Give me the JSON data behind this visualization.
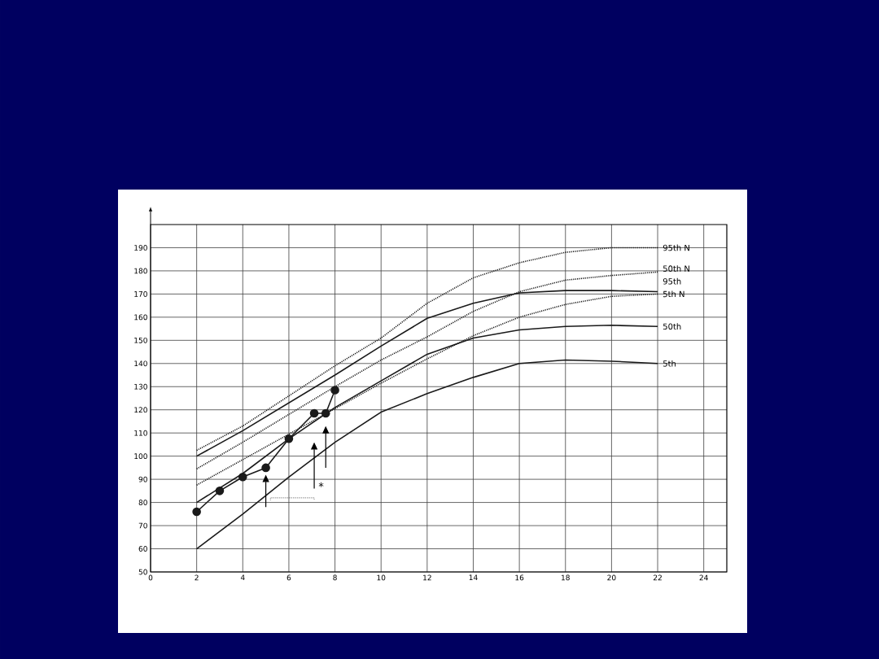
{
  "chart_data": {
    "type": "line",
    "x": [
      2,
      4,
      6,
      8,
      10,
      12,
      14,
      16,
      18,
      20,
      22
    ],
    "series": [
      {
        "name": "95th N",
        "color": "#1a1a1a",
        "line_style": "dotted",
        "values": [
          102.5,
          113,
          126,
          139,
          151,
          166,
          177,
          183.5,
          188,
          190,
          190
        ]
      },
      {
        "name": "50th N",
        "color": "#1a1a1a",
        "line_style": "dotted",
        "values": [
          94.5,
          106,
          118,
          130,
          141.5,
          151.5,
          162.5,
          171,
          176,
          178,
          179.5
        ]
      },
      {
        "name": "95th",
        "color": "#1a1a1a",
        "line_style": "solid",
        "values": [
          100,
          111,
          123,
          135,
          147.5,
          159.5,
          166,
          170.5,
          171.5,
          171.5,
          171
        ]
      },
      {
        "name": "5th N",
        "color": "#1a1a1a",
        "line_style": "dotted",
        "values": [
          87.5,
          98.5,
          109.5,
          120.5,
          131.5,
          142,
          152,
          160,
          165.5,
          169,
          170
        ]
      },
      {
        "name": "50th",
        "color": "#1a1a1a",
        "line_style": "solid",
        "values": [
          80,
          92.5,
          107.5,
          121,
          132.5,
          144,
          151,
          154.5,
          156,
          156.5,
          156
        ]
      },
      {
        "name": "5th",
        "color": "#1a1a1a",
        "line_style": "solid",
        "values": [
          60,
          75,
          91,
          106,
          119,
          127,
          134,
          140,
          141.5,
          141,
          140
        ]
      },
      {
        "color": "#1a1a1a",
        "line_style": "solid",
        "marker": "circle",
        "x": [
          2,
          3,
          4,
          5,
          6,
          7.1,
          7.6,
          8
        ],
        "values": [
          76,
          85,
          91,
          95,
          107.5,
          118.5,
          118.5,
          128.5
        ]
      }
    ],
    "xlim": [
      0,
      25
    ],
    "ylim": [
      50,
      200
    ],
    "xticks": [
      0,
      2,
      4,
      6,
      8,
      10,
      12,
      14,
      16,
      18,
      20,
      22,
      24
    ],
    "yticks": [
      50,
      60,
      70,
      80,
      90,
      100,
      110,
      120,
      130,
      140,
      150,
      160,
      170,
      180,
      190
    ],
    "grid": true,
    "annotations": [
      "*"
    ]
  }
}
